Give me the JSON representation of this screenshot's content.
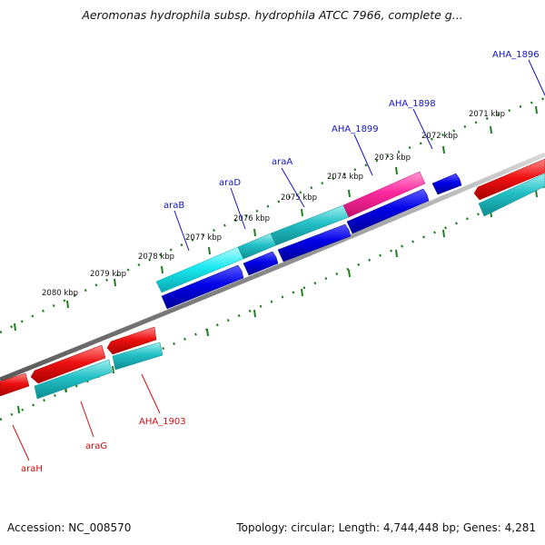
{
  "title": "Aeromonas hydrophila subsp. hydrophila ATCC 7966, complete g...",
  "footer": {
    "accession": "Accession: NC_008570",
    "topology": "Topology: circular; Length: 4,744,448 bp; Genes: 4,281"
  },
  "tick_labels": [
    "2071 kbp",
    "2072 kbp",
    "2073 kbp",
    "2074 kbp",
    "2075 kbp",
    "2076 kbp",
    "2077 kbp",
    "2078 kbp",
    "2079 kbp",
    "2080 kbp"
  ],
  "gene_labels_top": [
    "AHA_1896",
    "AHA_1898",
    "AHA_1899",
    "araA",
    "araD",
    "araB"
  ],
  "gene_labels_bottom": [
    "AHA_1903",
    "araG",
    "araH"
  ],
  "colors": {
    "backbone": "#8c8c8c",
    "forward_gene": "#0000e6",
    "reverse_gene": "#ee1111",
    "cds_forward": "#20c8d0",
    "cds_highlight": "#ff2aa0",
    "cds_cyan": "#18e8f0",
    "cds_reverse": "#18b4b8",
    "tick": "#1e7d1e",
    "label_blue": "#1414c8",
    "label_red": "#d01010"
  }
}
